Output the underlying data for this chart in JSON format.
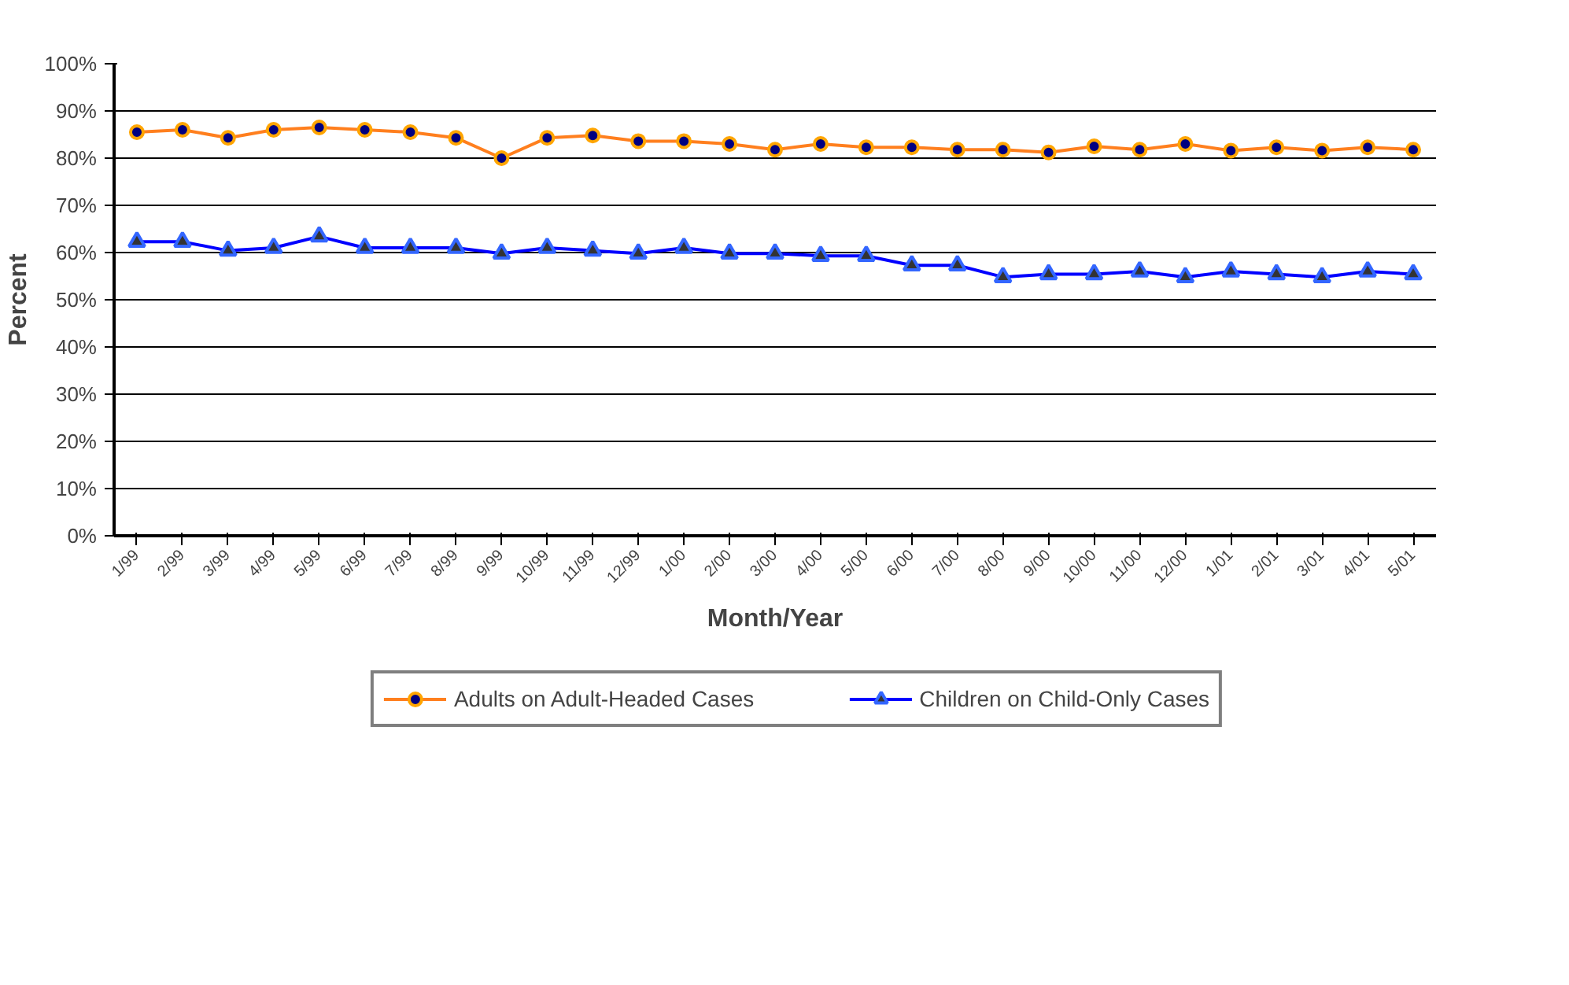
{
  "chart_data": {
    "type": "line",
    "xlabel": "Month/Year",
    "ylabel": "Percent",
    "categories": [
      "1/99",
      "2/99",
      "3/99",
      "4/99",
      "5/99",
      "6/99",
      "7/99",
      "8/99",
      "9/99",
      "10/99",
      "11/99",
      "12/99",
      "1/00",
      "2/00",
      "3/00",
      "4/00",
      "5/00",
      "6/00",
      "7/00",
      "8/00",
      "9/00",
      "10/00",
      "11/00",
      "12/00",
      "1/01",
      "2/01",
      "3/01",
      "4/01",
      "5/01"
    ],
    "series": [
      {
        "name": "Adults on Adult-Headed Cases",
        "color": "#ff7f1e",
        "marker": "circle",
        "values": [
          85.5,
          86,
          84.3,
          86,
          86.5,
          86,
          85.5,
          84.3,
          80,
          84.3,
          84.8,
          83.6,
          83.6,
          83,
          81.8,
          83,
          82.3,
          82.3,
          81.8,
          81.8,
          81.2,
          82.5,
          81.8,
          83,
          81.6,
          82.3,
          81.6,
          82.3,
          81.8
        ]
      },
      {
        "name": "Children on Child-Only Cases",
        "color": "#0000ff",
        "marker": "triangle",
        "values": [
          62.3,
          62.3,
          60.4,
          61,
          63.4,
          61,
          61,
          61,
          59.8,
          61,
          60.4,
          59.8,
          61,
          59.8,
          59.8,
          59.3,
          59.3,
          57.3,
          57.3,
          54.8,
          55.4,
          55.4,
          56,
          54.8,
          56,
          55.4,
          54.8,
          56,
          55.4
        ]
      }
    ],
    "ylim": [
      0,
      100
    ],
    "yticks": [
      {
        "value": 0,
        "label": "0%"
      },
      {
        "value": 10,
        "label": "10%"
      },
      {
        "value": 20,
        "label": "20%"
      },
      {
        "value": 30,
        "label": "30%"
      },
      {
        "value": 40,
        "label": "40%"
      },
      {
        "value": 50,
        "label": "50%"
      },
      {
        "value": 60,
        "label": "60%"
      },
      {
        "value": 70,
        "label": "70%"
      },
      {
        "value": 80,
        "label": "80%"
      },
      {
        "value": 90,
        "label": "90%"
      },
      {
        "value": 100,
        "label": "100%"
      }
    ],
    "grid": "y",
    "legend": "bottom",
    "line_style": "solid"
  }
}
